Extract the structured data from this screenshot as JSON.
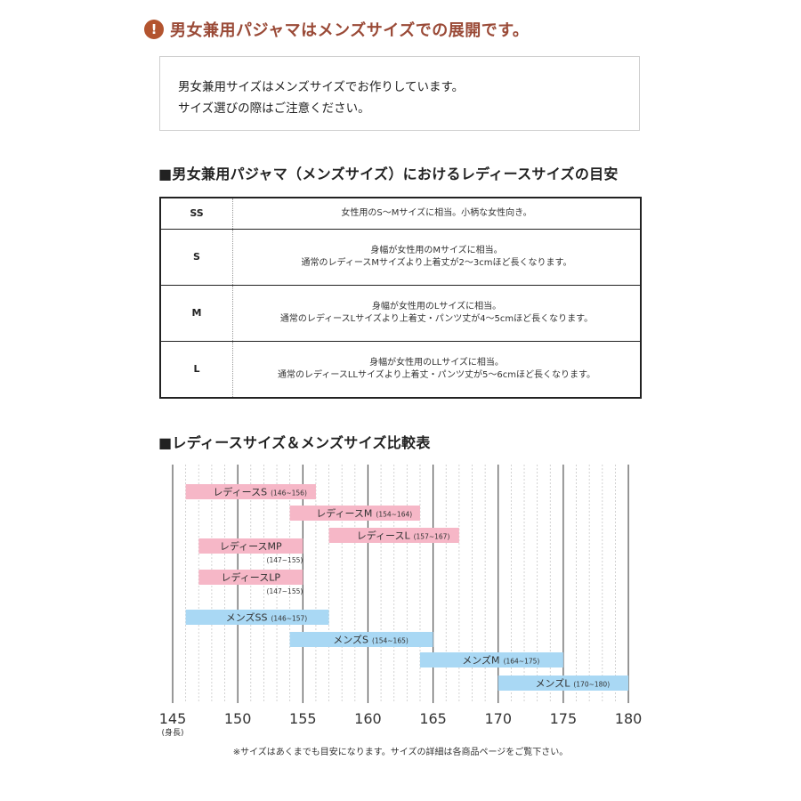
{
  "warning": {
    "icon": "exclamation-icon",
    "mark": "!",
    "text": "男女兼用パジャマはメンズサイズでの展開です。"
  },
  "notice": {
    "line1": "男女兼用サイズはメンズサイズでお作りしています。",
    "line2": "サイズ選びの際はご注意ください。"
  },
  "size_table": {
    "heading": "■男女兼用パジャマ（メンズサイズ）におけるレディースサイズの目安",
    "rows": [
      {
        "size": "SS",
        "line1": "女性用のS～Mサイズに相当。小柄な女性向き。",
        "line2": ""
      },
      {
        "size": "S",
        "line1": "身幅が女性用のMサイズに相当。",
        "line2": "通常のレディースMサイズより上着丈が2～3cmほど長くなります。"
      },
      {
        "size": "M",
        "line1": "身幅が女性用のLサイズに相当。",
        "line2": "通常のレディースLサイズより上着丈・パンツ丈が4～5cmほど長くなります。"
      },
      {
        "size": "L",
        "line1": "身幅が女性用のLLサイズに相当。",
        "line2": "通常のレディースLLサイズより上着丈・パンツ丈が5～6cmほど長くなります。"
      }
    ]
  },
  "comparison": {
    "heading": "■レディースサイズ＆メンズサイズ比較表"
  },
  "chart_data": {
    "type": "bar",
    "orientation": "horizontal-range",
    "xlim": [
      145,
      180
    ],
    "x_ticks": [
      "145",
      "150",
      "155",
      "160",
      "165",
      "170",
      "175",
      "180"
    ],
    "x_sublabel": "(身長)",
    "minor_grid_step": 1,
    "colors": {
      "ladies": "#f6b7c7",
      "mens": "#a9d8f4",
      "grid_major": "#555555",
      "grid_minor": "#c8c8c8"
    },
    "bars": [
      {
        "label": "レディースS",
        "range_text": "(146~156)",
        "from": 146,
        "to": 156,
        "group": "ladies",
        "range_below": false
      },
      {
        "label": "レディースM",
        "range_text": "(154~164)",
        "from": 154,
        "to": 164,
        "group": "ladies",
        "range_below": false
      },
      {
        "label": "レディースL",
        "range_text": "(157~167)",
        "from": 157,
        "to": 167,
        "group": "ladies",
        "range_below": false
      },
      {
        "label": "レディースMP",
        "range_text": "(147~155)",
        "from": 147,
        "to": 155,
        "group": "ladies",
        "range_below": true
      },
      {
        "label": "レディースLP",
        "range_text": "(147~155)",
        "from": 147,
        "to": 155,
        "group": "ladies",
        "range_below": true
      },
      {
        "label": "メンズSS",
        "range_text": "(146~157)",
        "from": 146,
        "to": 157,
        "group": "mens",
        "range_below": false
      },
      {
        "label": "メンズS",
        "range_text": "(154~165)",
        "from": 154,
        "to": 165,
        "group": "mens",
        "range_below": false
      },
      {
        "label": "メンズM",
        "range_text": "(164~175)",
        "from": 164,
        "to": 175,
        "group": "mens",
        "range_below": false
      },
      {
        "label": "メンズL",
        "range_text": "(170~180)",
        "from": 170,
        "to": 180,
        "group": "mens",
        "range_below": false
      }
    ]
  },
  "footnote": "※サイズはあくまでも目安になります。サイズの詳細は各商品ページをご覧下さい。"
}
